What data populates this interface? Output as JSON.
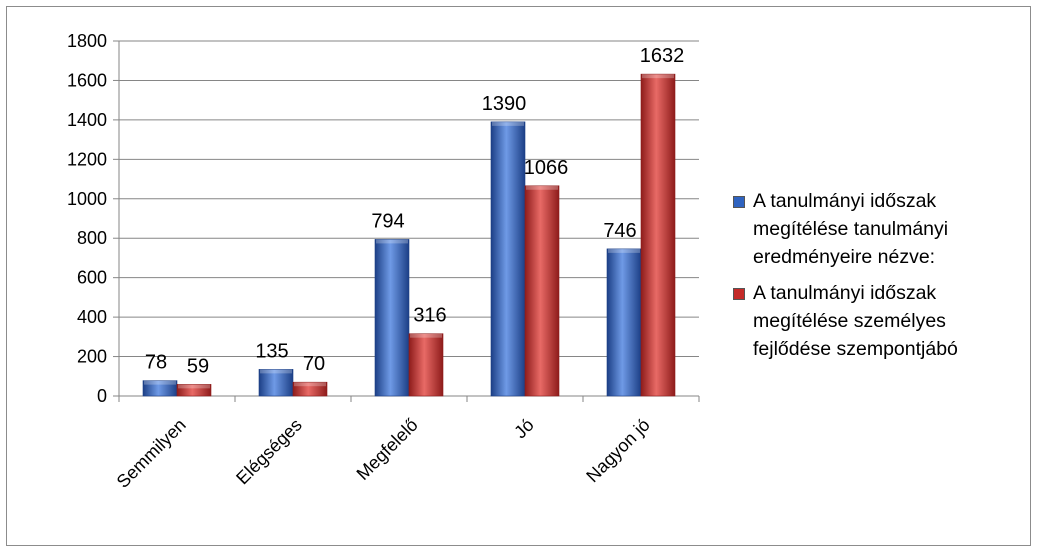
{
  "colors": {
    "series1": "#2f63c0",
    "series1_light": "#6f9ae6",
    "series1_dark": "#1c3f86",
    "series2": "#c42a28",
    "series2_light": "#e86a66",
    "series2_dark": "#8e1c1b",
    "gridline": "#868686",
    "axis": "#868686"
  },
  "chart_data": {
    "type": "bar",
    "categories": [
      "Semmilyen",
      "Elégséges",
      "Megfelelő",
      "Jó",
      "Nagyon jó"
    ],
    "series": [
      {
        "name": "A tanulmányi időszak megítélése tanulmányi eredményeire nézve:",
        "legend_lines": [
          "A tanulmányi időszak",
          "megítélése tanulmányi",
          "eredményeire nézve:"
        ],
        "values": [
          78,
          135,
          794,
          1390,
          746
        ]
      },
      {
        "name": "A tanulmányi időszak megítélése személyes fejlődése szempontjábó",
        "legend_lines": [
          "A tanulmányi időszak",
          "megítélése személyes",
          "fejlődése szempontjábó"
        ],
        "values": [
          59,
          70,
          316,
          1066,
          1632
        ]
      }
    ],
    "yticks": [
      "0",
      "200",
      "400",
      "600",
      "800",
      "1000",
      "1200",
      "1400",
      "1600",
      "1800"
    ],
    "ylim": [
      0,
      1800
    ],
    "grid": true,
    "legend_position": "right",
    "data_labels": true
  }
}
